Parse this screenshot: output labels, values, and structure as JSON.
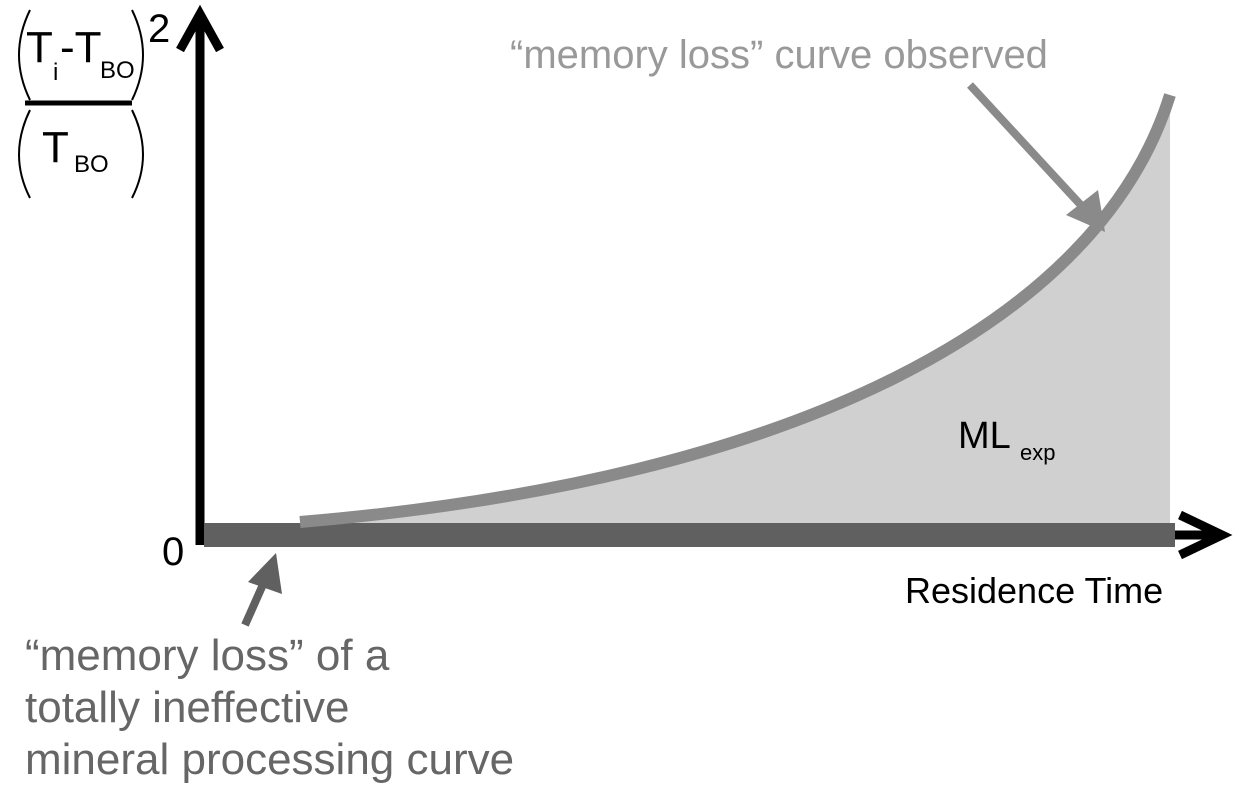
{
  "y_axis": {
    "numerator": {
      "base": "T",
      "sub": "i",
      "base2": "-T",
      "sub2": "BO"
    },
    "denominator": {
      "base": "T",
      "sub": "BO"
    },
    "exponent": "2",
    "origin": "0"
  },
  "x_axis": {
    "label": "Residence Time"
  },
  "curve_label": "“memory loss” curve observed",
  "baseline_label": {
    "lines": [
      "“memory loss” of a",
      "totally ineffective",
      "mineral processing curve"
    ]
  },
  "area_label": {
    "base": "ML",
    "sub": "exp"
  }
}
